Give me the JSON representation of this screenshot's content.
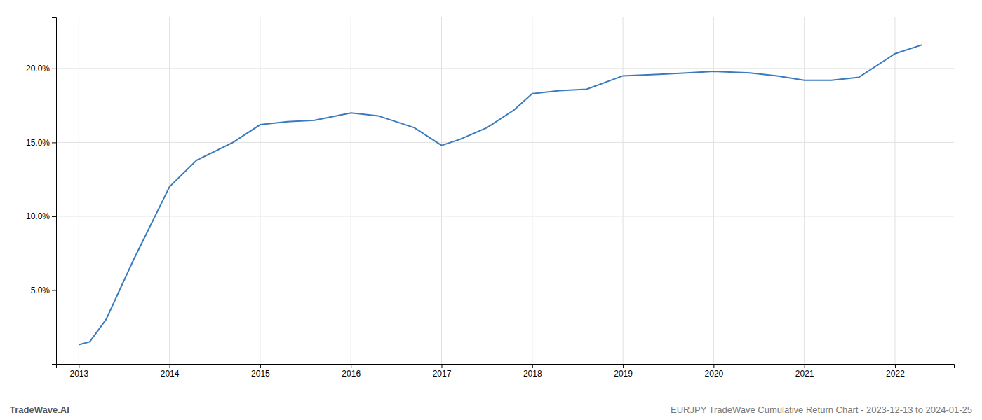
{
  "chart_data": {
    "type": "line",
    "x": [
      2013.0,
      2013.12,
      2013.3,
      2013.6,
      2014.0,
      2014.3,
      2014.7,
      2015.0,
      2015.3,
      2015.6,
      2016.0,
      2016.3,
      2016.7,
      2017.0,
      2017.2,
      2017.5,
      2017.8,
      2018.0,
      2018.3,
      2018.6,
      2019.0,
      2019.4,
      2019.7,
      2020.0,
      2020.4,
      2020.7,
      2021.0,
      2021.3,
      2021.6,
      2022.0,
      2022.3
    ],
    "values": [
      1.3,
      1.5,
      3.0,
      7.0,
      12.0,
      13.8,
      15.0,
      16.2,
      16.4,
      16.5,
      17.0,
      16.8,
      16.0,
      14.8,
      15.2,
      16.0,
      17.2,
      18.3,
      18.5,
      18.6,
      19.5,
      19.6,
      19.7,
      19.8,
      19.7,
      19.5,
      19.2,
      19.2,
      19.4,
      21.0,
      21.6
    ],
    "color": "#3a7abf",
    "xlim": [
      2012.75,
      2022.65
    ],
    "ylim": [
      0.0,
      23.5
    ],
    "xticks": [
      2013,
      2014,
      2015,
      2016,
      2017,
      2018,
      2019,
      2020,
      2021,
      2022
    ],
    "yticks": [
      {
        "value": 5.0,
        "label": "5.0%"
      },
      {
        "value": 10.0,
        "label": "10.0%"
      },
      {
        "value": 15.0,
        "label": "15.0%"
      },
      {
        "value": 20.0,
        "label": "20.0%"
      }
    ],
    "grid": true,
    "annotations": [
      "TradeWave.AI",
      "EURJPY TradeWave Cumulative Return Chart - 2023-12-13 to 2024-01-25"
    ]
  }
}
